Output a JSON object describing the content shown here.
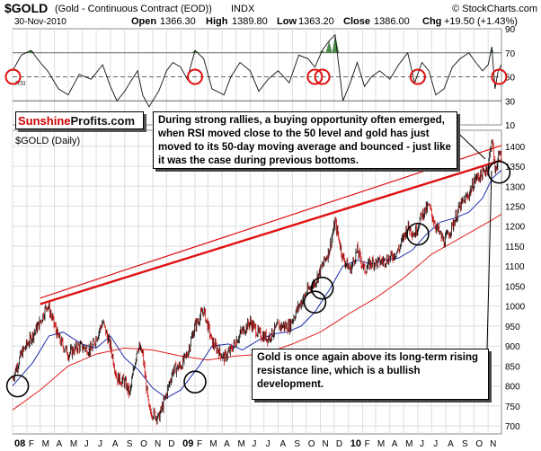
{
  "header": {
    "symbol": "$GOLD",
    "description": "(Gold - Continuous Contract (EOD))",
    "exchange": "INDX",
    "source": "© StockCharts.com",
    "date": "30-Nov-2010",
    "open_label": "Open",
    "open": "1366.30",
    "high_label": "High",
    "high": "1389.80",
    "low_label": "Low",
    "low": "1363.20",
    "close_label": "Close",
    "close": "1386.00",
    "chg_label": "Chg",
    "chg": "+19.50 (+1.43%)"
  },
  "rsi_panel": {
    "tag": "RSI",
    "ticks": [
      "90",
      "70",
      "50",
      "30",
      "10"
    ],
    "tick_values": [
      90,
      70,
      50,
      30,
      10
    ]
  },
  "brand": {
    "part1": "Sunshine",
    "part2": "Profits.com"
  },
  "price_panel": {
    "label": "$GOLD (Daily)"
  },
  "annotations": {
    "top": "During strong rallies, a buying opportunity often emerged, when RSI moved close to the 50 level and gold has just moved to its 50-day moving average and bounced - just like it was the case during previous bottoms.",
    "bottom": "Gold is once again above its long-term rising resistance line, which is a bullish development."
  },
  "chart_data": {
    "type": "line",
    "title": "$GOLD (Gold - Continuous Contract (EOD))",
    "x_axis": {
      "tick_labels": [
        "08",
        "F",
        "M",
        "A",
        "M",
        "J",
        "J",
        "A",
        "S",
        "O",
        "N",
        "D",
        "09",
        "F",
        "M",
        "A",
        "M",
        "J",
        "J",
        "A",
        "S",
        "O",
        "N",
        "D",
        "10",
        "F",
        "M",
        "A",
        "M",
        "J",
        "J",
        "A",
        "S",
        "O",
        "N"
      ],
      "range": [
        "2008-01-01",
        "2010-11-30"
      ]
    },
    "y_axis": {
      "tick_labels": [
        "700",
        "750",
        "800",
        "850",
        "900",
        "950",
        "1000",
        "1050",
        "1100",
        "1150",
        "1200",
        "1250",
        "1300",
        "1350",
        "1400"
      ],
      "ylim": [
        680,
        1440
      ]
    },
    "grid": true,
    "series": [
      {
        "name": "Gold close",
        "x": [
          "2008-01-01",
          "2008-01-20",
          "2008-02-10",
          "2008-03-01",
          "2008-03-17",
          "2008-04-10",
          "2008-05-01",
          "2008-05-25",
          "2008-06-20",
          "2008-07-15",
          "2008-08-01",
          "2008-08-15",
          "2008-09-01",
          "2008-09-12",
          "2008-09-29",
          "2008-10-10",
          "2008-10-24",
          "2008-11-14",
          "2008-12-01",
          "2008-12-15",
          "2009-01-01",
          "2009-01-15",
          "2009-02-01",
          "2009-02-20",
          "2009-03-10",
          "2009-04-05",
          "2009-04-20",
          "2009-05-10",
          "2009-06-01",
          "2009-06-20",
          "2009-07-10",
          "2009-08-01",
          "2009-08-25",
          "2009-09-15",
          "2009-10-05",
          "2009-10-20",
          "2009-11-05",
          "2009-11-20",
          "2009-12-03",
          "2009-12-20",
          "2010-01-05",
          "2010-01-20",
          "2010-02-05",
          "2010-02-20",
          "2010-03-10",
          "2010-04-01",
          "2010-04-20",
          "2010-05-10",
          "2010-05-25",
          "2010-06-10",
          "2010-06-25",
          "2010-07-10",
          "2010-07-28",
          "2010-08-15",
          "2010-09-01",
          "2010-09-20",
          "2010-10-05",
          "2010-10-20",
          "2010-11-01",
          "2010-11-09",
          "2010-11-16",
          "2010-11-23",
          "2010-11-30"
        ],
        "values": [
          820,
          880,
          920,
          960,
          1005,
          920,
          880,
          900,
          890,
          960,
          900,
          820,
          810,
          780,
          900,
          880,
          740,
          720,
          780,
          840,
          850,
          880,
          950,
          990,
          910,
          870,
          890,
          930,
          960,
          930,
          920,
          950,
          950,
          1000,
          1040,
          1060,
          1100,
          1140,
          1210,
          1120,
          1090,
          1140,
          1090,
          1110,
          1110,
          1120,
          1140,
          1200,
          1180,
          1230,
          1250,
          1200,
          1160,
          1200,
          1250,
          1280,
          1320,
          1330,
          1350,
          1420,
          1340,
          1370,
          1386
        ]
      },
      {
        "name": "50-day MA",
        "x": [
          "2008-01-01",
          "2008-02-15",
          "2008-03-20",
          "2008-04-20",
          "2008-05-30",
          "2008-07-01",
          "2008-08-01",
          "2008-09-01",
          "2008-10-01",
          "2008-11-01",
          "2008-12-01",
          "2009-01-01",
          "2009-02-10",
          "2009-03-10",
          "2009-04-15",
          "2009-05-15",
          "2009-06-20",
          "2009-07-20",
          "2009-08-20",
          "2009-09-20",
          "2009-10-20",
          "2009-11-20",
          "2009-12-20",
          "2010-01-20",
          "2010-02-20",
          "2010-03-20",
          "2010-04-20",
          "2010-05-20",
          "2010-06-20",
          "2010-07-20",
          "2010-08-20",
          "2010-09-20",
          "2010-10-20",
          "2010-11-10",
          "2010-11-30"
        ],
        "values": [
          800,
          860,
          925,
          935,
          905,
          895,
          925,
          870,
          840,
          795,
          770,
          790,
          850,
          900,
          905,
          890,
          915,
          930,
          935,
          950,
          985,
          1040,
          1100,
          1115,
          1105,
          1115,
          1120,
          1140,
          1180,
          1210,
          1220,
          1235,
          1270,
          1320,
          1340
        ]
      },
      {
        "name": "200-day MA",
        "x": [
          "2008-01-01",
          "2008-03-01",
          "2008-05-01",
          "2008-07-01",
          "2008-09-01",
          "2008-11-01",
          "2009-01-01",
          "2009-03-01",
          "2009-05-01",
          "2009-07-01",
          "2009-09-01",
          "2009-11-01",
          "2010-01-01",
          "2010-03-01",
          "2010-05-01",
          "2010-07-01",
          "2010-09-01",
          "2010-11-01",
          "2010-11-30"
        ],
        "values": [
          740,
          790,
          850,
          880,
          895,
          890,
          875,
          865,
          875,
          880,
          905,
          935,
          980,
          1020,
          1070,
          1130,
          1170,
          1210,
          1230
        ]
      }
    ],
    "rsi": {
      "x": [
        "2008-01-01",
        "2008-01-20",
        "2008-02-10",
        "2008-03-01",
        "2008-03-17",
        "2008-04-10",
        "2008-05-01",
        "2008-05-25",
        "2008-06-20",
        "2008-07-15",
        "2008-08-01",
        "2008-08-15",
        "2008-09-01",
        "2008-09-12",
        "2008-09-29",
        "2008-10-10",
        "2008-10-24",
        "2008-11-14",
        "2008-12-01",
        "2008-12-15",
        "2009-01-01",
        "2009-01-15",
        "2009-02-01",
        "2009-02-20",
        "2009-03-10",
        "2009-04-05",
        "2009-04-20",
        "2009-05-10",
        "2009-06-01",
        "2009-06-20",
        "2009-07-10",
        "2009-08-01",
        "2009-08-25",
        "2009-09-15",
        "2009-10-05",
        "2009-10-20",
        "2009-11-05",
        "2009-11-20",
        "2009-12-03",
        "2009-12-20",
        "2010-01-05",
        "2010-01-20",
        "2010-02-05",
        "2010-02-20",
        "2010-03-10",
        "2010-04-01",
        "2010-04-20",
        "2010-05-10",
        "2010-05-25",
        "2010-06-10",
        "2010-06-25",
        "2010-07-10",
        "2010-07-28",
        "2010-08-15",
        "2010-09-01",
        "2010-09-20",
        "2010-10-05",
        "2010-10-20",
        "2010-11-01",
        "2010-11-09",
        "2010-11-16",
        "2010-11-23",
        "2010-11-30"
      ],
      "values": [
        55,
        68,
        72,
        62,
        55,
        40,
        35,
        52,
        48,
        60,
        42,
        30,
        38,
        45,
        55,
        35,
        25,
        38,
        55,
        62,
        58,
        48,
        72,
        65,
        40,
        35,
        50,
        62,
        55,
        38,
        48,
        55,
        45,
        68,
        65,
        58,
        72,
        80,
        85,
        30,
        45,
        62,
        42,
        50,
        55,
        48,
        60,
        70,
        45,
        62,
        55,
        35,
        40,
        58,
        65,
        70,
        62,
        55,
        60,
        75,
        40,
        55,
        60
      ],
      "ylim": [
        10,
        90
      ],
      "levels": [
        70,
        50,
        30
      ]
    },
    "trendlines": [
      {
        "x": [
          "2008-03-01",
          "2010-11-30"
        ],
        "values": [
          1020,
          1402
        ]
      },
      {
        "x": [
          "2008-03-01",
          "2010-11-30"
        ],
        "values": [
          1005,
          1365
        ]
      }
    ],
    "highlights_price": [
      {
        "x": "2008-01-12",
        "y": 800
      },
      {
        "x": "2009-02-01",
        "y": 810
      },
      {
        "x": "2009-10-20",
        "y": 1010
      },
      {
        "x": "2009-11-05",
        "y": 1045
      },
      {
        "x": "2010-06-01",
        "y": 1180
      },
      {
        "x": "2010-11-25",
        "y": 1335
      }
    ],
    "highlights_rsi": [
      {
        "x": "2008-01-02"
      },
      {
        "x": "2009-02-01"
      },
      {
        "x": "2009-10-20"
      },
      {
        "x": "2009-11-05"
      },
      {
        "x": "2010-06-01"
      },
      {
        "x": "2010-11-25"
      }
    ]
  }
}
